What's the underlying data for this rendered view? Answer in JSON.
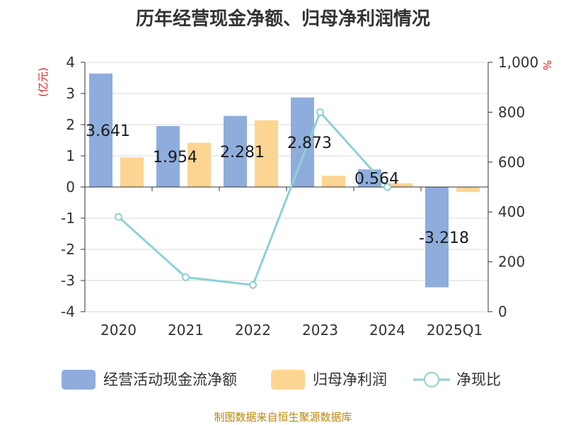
{
  "title": "历年经营现金净额、归母净利润情况",
  "source": "制图数据来自恒生聚源数据库",
  "colors": {
    "bar1": "#8eaddc",
    "bar2": "#fdd592",
    "line": "#8fd0d4",
    "unit": "#e02020",
    "source": "#b8860b"
  },
  "chart_data": {
    "type": "bar",
    "title": "历年经营现金净额、归母净利润情况",
    "categories": [
      "2020",
      "2021",
      "2022",
      "2023",
      "2024",
      "2025Q1"
    ],
    "left_axis": {
      "unit": "(亿元)",
      "min": -4,
      "max": 4,
      "ticks": [
        4,
        3,
        2,
        1,
        0,
        -1,
        -2,
        -3,
        -4
      ]
    },
    "right_axis": {
      "unit": "%",
      "min": 0,
      "max": 1000,
      "ticks": [
        0,
        200,
        400,
        600,
        800,
        1000
      ],
      "tick_labels": [
        "0",
        "200",
        "400",
        "600",
        "800",
        "1,000"
      ]
    },
    "series": [
      {
        "name": "经营活动现金流净额",
        "type": "bar",
        "axis": "left",
        "values": [
          3.641,
          1.954,
          2.281,
          2.873,
          0.564,
          -3.218
        ],
        "labels": [
          "3.641",
          "1.954",
          "2.281",
          "2.873",
          "0.564",
          "-3.218"
        ]
      },
      {
        "name": "归母净利润",
        "type": "bar",
        "axis": "left",
        "values": [
          0.95,
          1.42,
          2.14,
          0.36,
          0.12,
          -0.16
        ]
      },
      {
        "name": "净现比",
        "type": "line",
        "axis": "right",
        "values": [
          380,
          138,
          107,
          800,
          500,
          null
        ]
      }
    ],
    "legend_position": "bottom",
    "grid": true
  }
}
